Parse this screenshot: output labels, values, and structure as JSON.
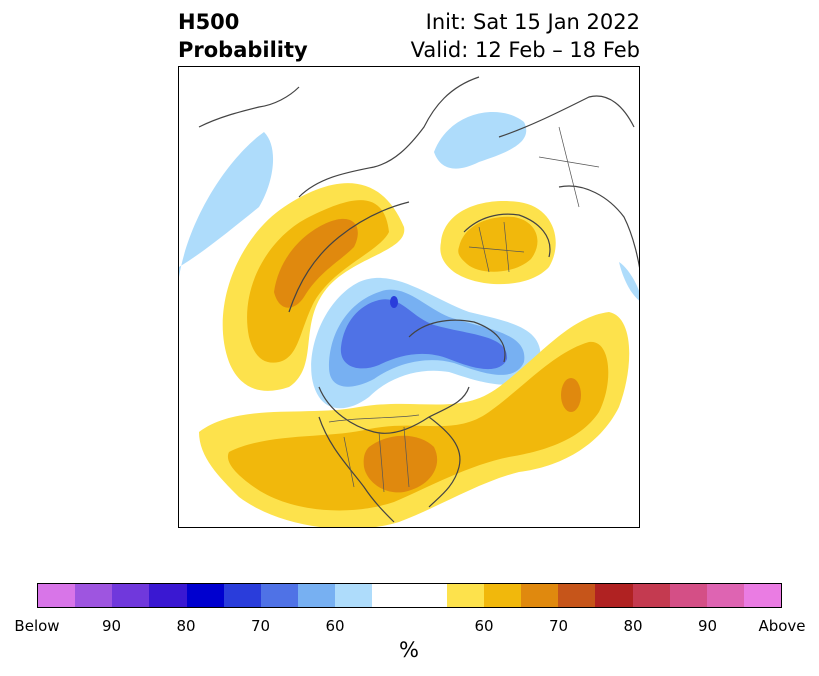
{
  "header": {
    "left_line1": "H500",
    "left_line2": "Probability",
    "right_line1": "Init: Sat 15 Jan 2022",
    "right_line2": "Valid: 12 Feb – 18 Feb"
  },
  "map": {
    "projection": "north-polar-stereographic",
    "coastline_color": "#444444",
    "border_color": "#555555"
  },
  "colorbar": {
    "unit": "%",
    "colors": [
      "#d875e8",
      "#9e55e0",
      "#7038dc",
      "#3a18d2",
      "#0000cf",
      "#2a3ddb",
      "#4f72e6",
      "#77b0f2",
      "#aedcfb",
      "#ffffff",
      "#ffffff",
      "#fde24c",
      "#f1b80c",
      "#e0890e",
      "#c6551a",
      "#b02222",
      "#c43a50",
      "#d44f86",
      "#de64b2",
      "#ea7ce3"
    ],
    "labels": [
      "Below",
      "90",
      "80",
      "70",
      "60",
      "60",
      "70",
      "80",
      "90",
      "Above"
    ]
  }
}
